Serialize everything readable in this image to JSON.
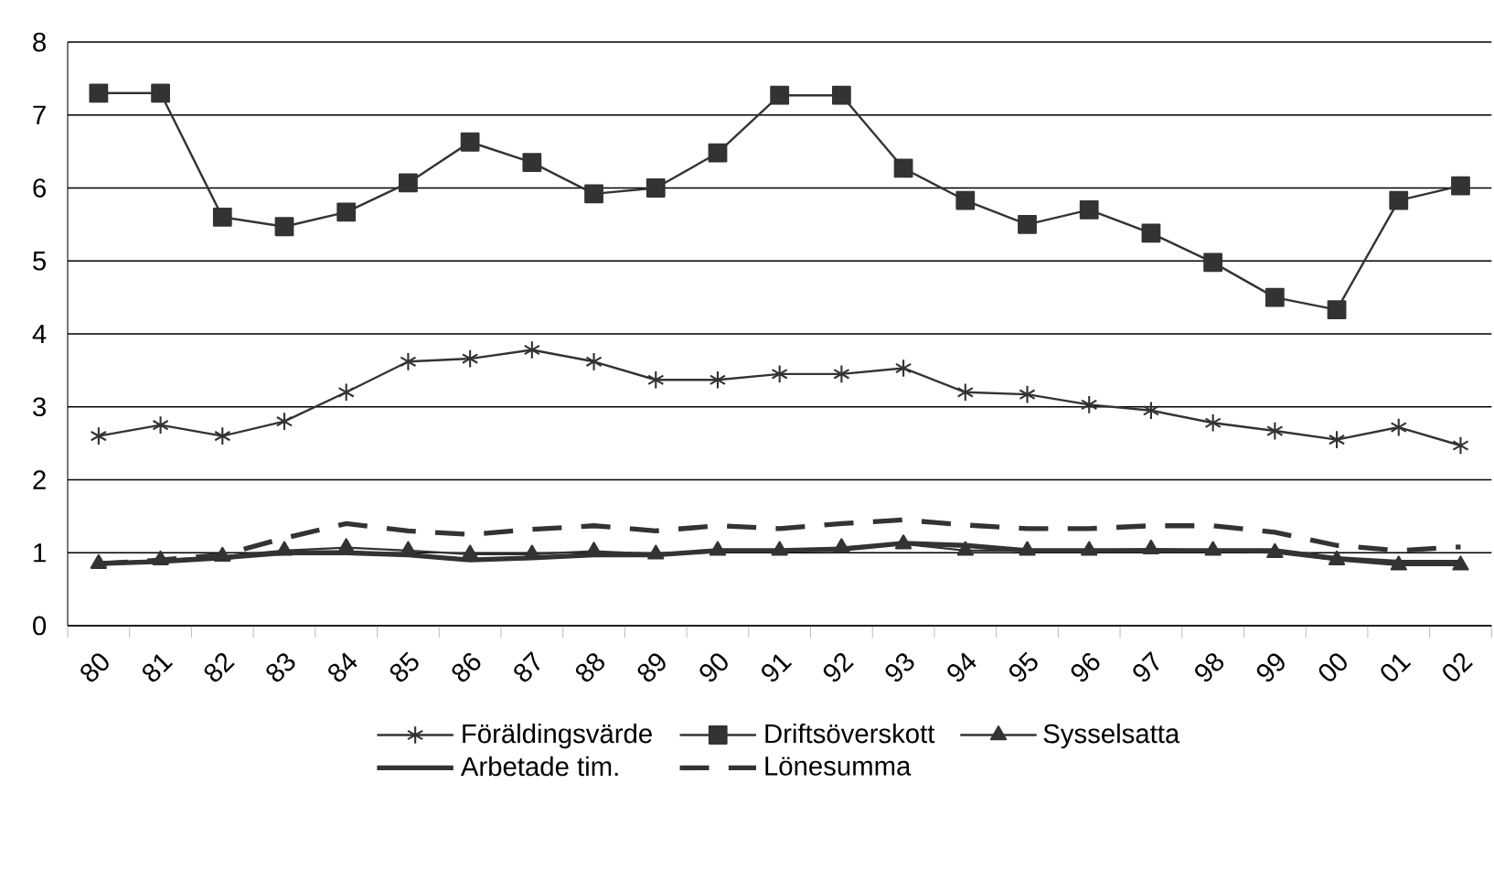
{
  "chart_data": {
    "type": "line",
    "categories": [
      "80",
      "81",
      "82",
      "83",
      "84",
      "85",
      "86",
      "87",
      "88",
      "89",
      "90",
      "91",
      "92",
      "93",
      "94",
      "95",
      "96",
      "97",
      "98",
      "99",
      "00",
      "01",
      "02"
    ],
    "series": [
      {
        "name": "Föräldingsvärde",
        "color": "#333333",
        "marker": "cross",
        "line_style": "solid",
        "values": [
          2.6,
          2.75,
          2.6,
          2.8,
          3.2,
          3.62,
          3.66,
          3.78,
          3.62,
          3.37,
          3.37,
          3.45,
          3.45,
          3.53,
          3.2,
          3.17,
          3.03,
          2.95,
          2.78,
          2.67,
          2.55,
          2.72,
          2.47
        ]
      },
      {
        "name": "Driftsöverskott",
        "color": "#333333",
        "marker": "square",
        "line_style": "solid",
        "values": [
          7.3,
          7.3,
          5.6,
          5.47,
          5.67,
          6.07,
          6.63,
          6.35,
          5.92,
          6.0,
          6.48,
          7.27,
          7.27,
          6.27,
          5.83,
          5.5,
          5.7,
          5.38,
          4.98,
          4.5,
          4.33,
          5.83,
          6.03
        ]
      },
      {
        "name": "Sysselsatta",
        "color": "#333333",
        "marker": "triangle",
        "line_style": "solid",
        "values": [
          0.85,
          0.9,
          0.95,
          1.03,
          1.07,
          1.03,
          0.98,
          0.98,
          1.02,
          0.98,
          1.03,
          1.03,
          1.07,
          1.12,
          1.03,
          1.03,
          1.03,
          1.05,
          1.03,
          1.0,
          0.9,
          0.83,
          0.83
        ]
      },
      {
        "name": "Arbetade tim.",
        "color": "#333333",
        "marker": "none",
        "line_style": "solid",
        "values": [
          0.85,
          0.88,
          0.93,
          1.0,
          1.0,
          0.97,
          0.9,
          0.93,
          0.97,
          0.97,
          1.03,
          1.03,
          1.05,
          1.13,
          1.1,
          1.03,
          1.03,
          1.03,
          1.03,
          1.03,
          0.92,
          0.87,
          0.87
        ]
      },
      {
        "name": "Lönesumma",
        "color": "#333333",
        "marker": "none",
        "line_style": "dashed",
        "values": [
          0.85,
          0.9,
          0.97,
          1.2,
          1.4,
          1.3,
          1.25,
          1.32,
          1.37,
          1.3,
          1.37,
          1.33,
          1.4,
          1.45,
          1.38,
          1.33,
          1.33,
          1.37,
          1.37,
          1.28,
          1.1,
          1.03,
          1.08
        ]
      }
    ],
    "ylim": [
      0,
      8
    ],
    "yticks": [
      0,
      1,
      2,
      3,
      4,
      5,
      6,
      7,
      8
    ],
    "grid": "y",
    "legend": "bottom"
  }
}
